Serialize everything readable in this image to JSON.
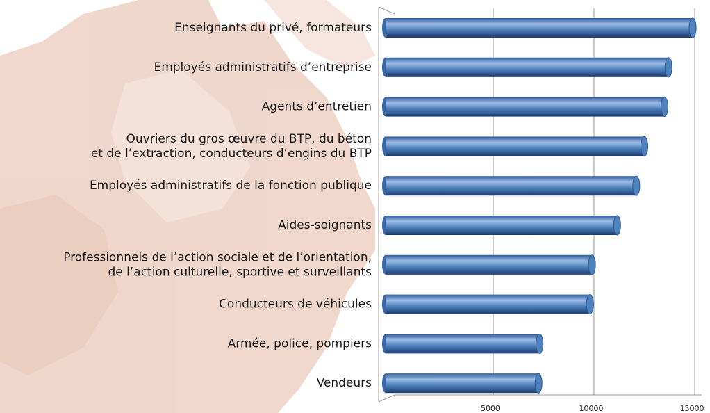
{
  "chart_data": {
    "type": "barh",
    "categories": [
      "Enseignants du privé, formateurs",
      "Employés administratifs d’entreprise",
      "Agents d’entretien",
      "Ouvriers du gros œuvre du BTP, du béton\net de l’extraction, conducteurs d’engins du BTP",
      "Employés administratifs de la fonction publique",
      "Aides-soignants",
      "Professionnels de l’action sociale et de l’orientation,\nde l’action culturelle, sportive et surveillants",
      "Conducteurs de véhicules",
      "Armée, police, pompiers",
      "Vendeurs"
    ],
    "values": [
      14900,
      13700,
      13500,
      12500,
      12100,
      11150,
      9900,
      9800,
      7300,
      7250
    ],
    "color": "#4f81bd",
    "xlim": [
      0,
      15000
    ],
    "xticks": [
      5000,
      10000,
      15000
    ],
    "grid": true
  }
}
